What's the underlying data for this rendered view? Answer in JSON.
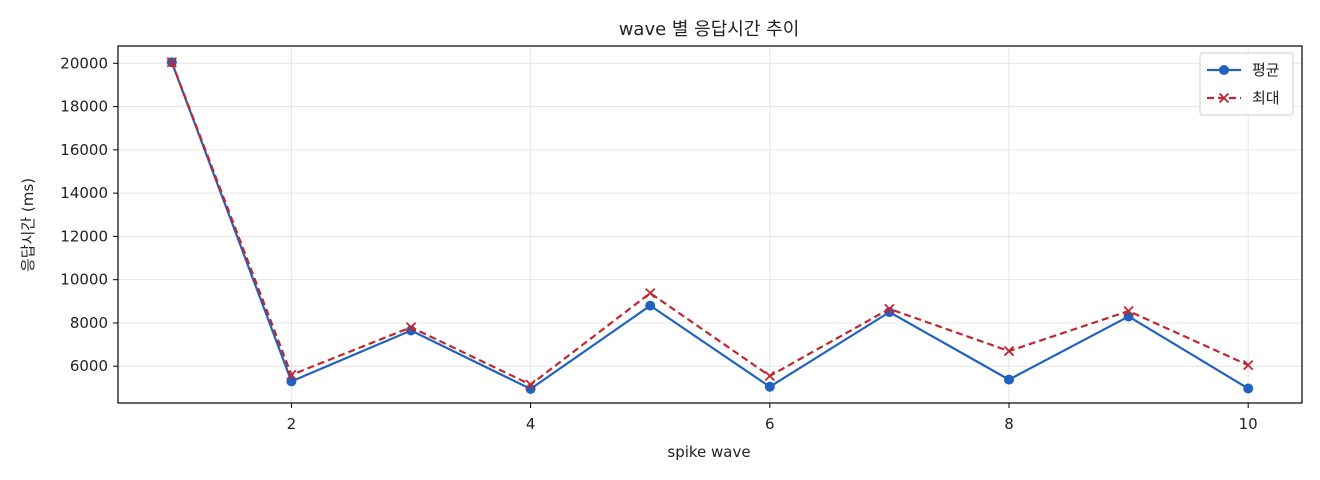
{
  "chart_data": {
    "type": "line",
    "title": "wave 별 응답시간 추이",
    "xlabel": "spike wave",
    "ylabel": "응답시간 (ms)",
    "x": [
      1,
      2,
      3,
      4,
      5,
      6,
      7,
      8,
      9,
      10
    ],
    "xlim": [
      0.55,
      10.45
    ],
    "ylim": [
      4300,
      20800
    ],
    "xticks": [
      2,
      4,
      6,
      8,
      10
    ],
    "yticks": [
      6000,
      8000,
      10000,
      12000,
      14000,
      16000,
      18000,
      20000
    ],
    "grid": true,
    "legend_position": "top-right",
    "series": [
      {
        "name": "평균",
        "values": [
          20050,
          5300,
          7650,
          4950,
          8800,
          5050,
          8500,
          5380,
          8300,
          4970
        ],
        "color": "#1f62c0",
        "line_style": "solid",
        "marker": "circle"
      },
      {
        "name": "최대",
        "values": [
          20050,
          5600,
          7800,
          5150,
          9380,
          5550,
          8650,
          6700,
          8550,
          6050
        ],
        "color": "#c0282f",
        "line_style": "dashed",
        "marker": "x"
      }
    ]
  }
}
